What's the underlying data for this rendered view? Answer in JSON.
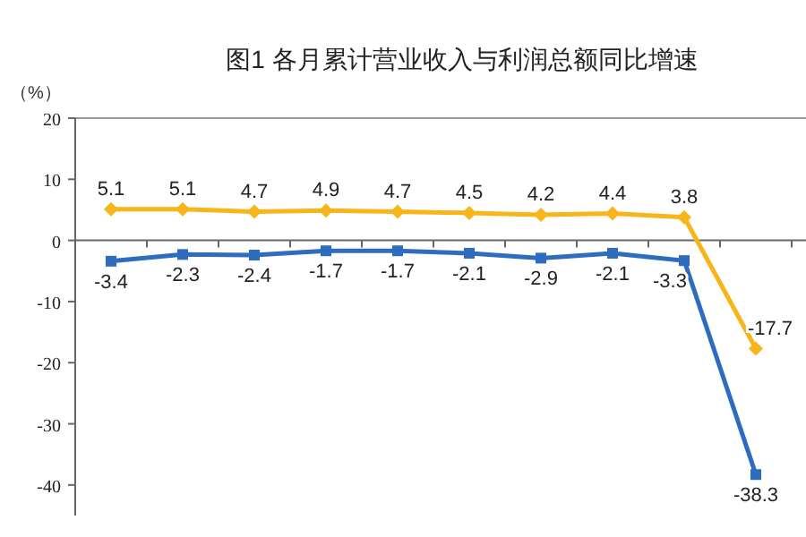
{
  "chart_data": {
    "type": "line",
    "title": "图1  各月累计营业收入与利润总额同比增速",
    "ylabel": "（%）",
    "categories": [
      null,
      null,
      null,
      null,
      null,
      null,
      null,
      null,
      null,
      null
    ],
    "series": [
      {
        "color": "#f7b519",
        "marker": "diamond",
        "values": [
          5.1,
          5.1,
          4.7,
          4.9,
          4.7,
          4.5,
          4.2,
          4.4,
          3.8,
          -17.7
        ]
      },
      {
        "color": "#2e6cc0",
        "marker": "square",
        "values": [
          -3.4,
          -2.3,
          -2.4,
          -1.7,
          -1.7,
          -2.1,
          -2.9,
          -2.1,
          -3.3,
          -38.3
        ]
      }
    ],
    "ylim": [
      -45,
      20
    ],
    "yticks": [
      20,
      10,
      0,
      -10,
      -20,
      -30,
      -40
    ],
    "data_labels": true,
    "tick_labels": "y",
    "line_style": "solid"
  }
}
